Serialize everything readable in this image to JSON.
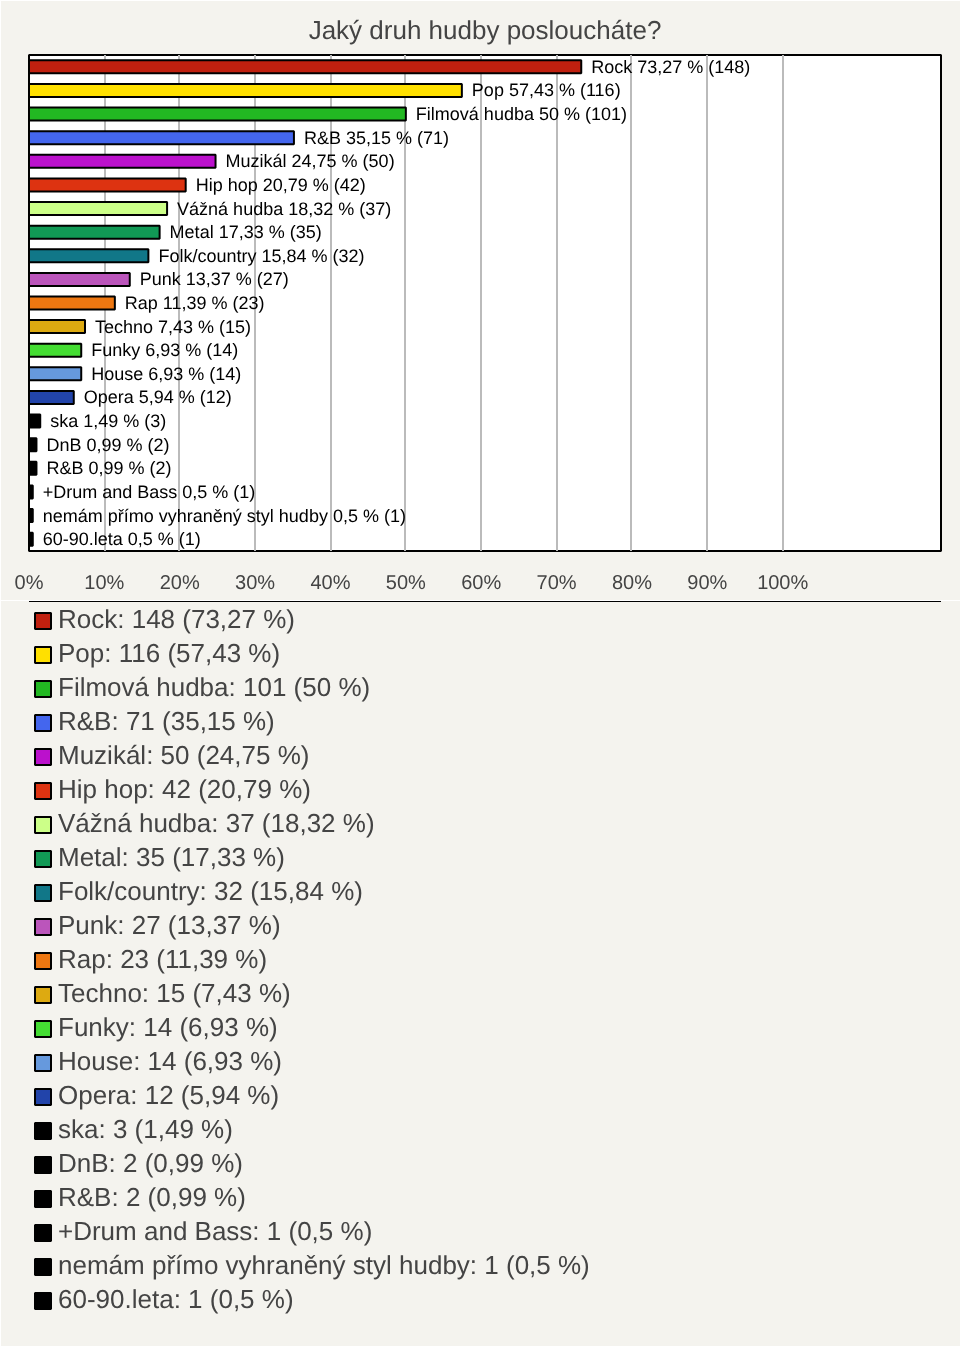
{
  "chart_data": {
    "type": "bar",
    "orientation": "horizontal",
    "title": "Jaký druh hudby posloucháte?",
    "categories": [
      null,
      null,
      null,
      null,
      null,
      null,
      null,
      null,
      null,
      null,
      null,
      null,
      null,
      null,
      null,
      null,
      null,
      null,
      null,
      null,
      null
    ],
    "xlim": [
      0,
      121
    ],
    "xticks": [
      {
        "value": 0,
        "label": "0%"
      },
      {
        "value": 10,
        "label": "10%"
      },
      {
        "value": 20,
        "label": "20%"
      },
      {
        "value": 30,
        "label": "30%"
      },
      {
        "value": 40,
        "label": "40%"
      },
      {
        "value": 50,
        "label": "50%"
      },
      {
        "value": 60,
        "label": "60%"
      },
      {
        "value": 70,
        "label": "70%"
      },
      {
        "value": 80,
        "label": "80%"
      },
      {
        "value": 90,
        "label": "90%"
      },
      {
        "value": 100,
        "label": "100%"
      }
    ],
    "grid": "x",
    "tick_labels": "x",
    "legend": "bottom",
    "series": [
      {
        "name": "Rock: 148 (73,27 %)",
        "color": "#c0200f",
        "values": [
          73.27,
          null,
          null,
          null,
          null,
          null,
          null,
          null,
          null,
          null,
          null,
          null,
          null,
          null,
          null,
          null,
          null,
          null,
          null,
          null,
          null
        ],
        "value_labels": [
          "Rock 73,27 % (148)",
          null,
          null,
          null,
          null,
          null,
          null,
          null,
          null,
          null,
          null,
          null,
          null,
          null,
          null,
          null,
          null,
          null,
          null,
          null,
          null
        ]
      },
      {
        "name": "Pop: 116 (57,43 %)",
        "color": "#ffe000",
        "values": [
          null,
          57.43,
          null,
          null,
          null,
          null,
          null,
          null,
          null,
          null,
          null,
          null,
          null,
          null,
          null,
          null,
          null,
          null,
          null,
          null,
          null
        ],
        "value_labels": [
          null,
          "Pop 57,43 % (116)",
          null,
          null,
          null,
          null,
          null,
          null,
          null,
          null,
          null,
          null,
          null,
          null,
          null,
          null,
          null,
          null,
          null,
          null,
          null
        ]
      },
      {
        "name": "Filmová hudba: 101 (50 %)",
        "color": "#22b822",
        "values": [
          null,
          null,
          50,
          null,
          null,
          null,
          null,
          null,
          null,
          null,
          null,
          null,
          null,
          null,
          null,
          null,
          null,
          null,
          null,
          null,
          null
        ],
        "value_labels": [
          null,
          null,
          "Filmová hudba 50 % (101)",
          null,
          null,
          null,
          null,
          null,
          null,
          null,
          null,
          null,
          null,
          null,
          null,
          null,
          null,
          null,
          null,
          null,
          null
        ]
      },
      {
        "name": "R&B: 71 (35,15 %)",
        "color": "#4466ee",
        "values": [
          null,
          null,
          null,
          35.15,
          null,
          null,
          null,
          null,
          null,
          null,
          null,
          null,
          null,
          null,
          null,
          null,
          null,
          null,
          null,
          null,
          null
        ],
        "value_labels": [
          null,
          null,
          null,
          "R&B 35,15 % (71)",
          null,
          null,
          null,
          null,
          null,
          null,
          null,
          null,
          null,
          null,
          null,
          null,
          null,
          null,
          null,
          null,
          null
        ]
      },
      {
        "name": "Muzikál: 50 (24,75 %)",
        "color": "#bb11cc",
        "values": [
          null,
          null,
          null,
          null,
          24.75,
          null,
          null,
          null,
          null,
          null,
          null,
          null,
          null,
          null,
          null,
          null,
          null,
          null,
          null,
          null,
          null
        ],
        "value_labels": [
          null,
          null,
          null,
          null,
          "Muzikál 24,75 % (50)",
          null,
          null,
          null,
          null,
          null,
          null,
          null,
          null,
          null,
          null,
          null,
          null,
          null,
          null,
          null,
          null
        ]
      },
      {
        "name": "Hip hop: 42 (20,79 %)",
        "color": "#dd3311",
        "values": [
          null,
          null,
          null,
          null,
          null,
          20.79,
          null,
          null,
          null,
          null,
          null,
          null,
          null,
          null,
          null,
          null,
          null,
          null,
          null,
          null,
          null
        ],
        "value_labels": [
          null,
          null,
          null,
          null,
          null,
          "Hip hop 20,79 % (42)",
          null,
          null,
          null,
          null,
          null,
          null,
          null,
          null,
          null,
          null,
          null,
          null,
          null,
          null,
          null
        ]
      },
      {
        "name": "Vážná hudba: 37 (18,32 %)",
        "color": "#ccff88",
        "values": [
          null,
          null,
          null,
          null,
          null,
          null,
          18.32,
          null,
          null,
          null,
          null,
          null,
          null,
          null,
          null,
          null,
          null,
          null,
          null,
          null,
          null
        ],
        "value_labels": [
          null,
          null,
          null,
          null,
          null,
          null,
          "Vážná hudba 18,32 % (37)",
          null,
          null,
          null,
          null,
          null,
          null,
          null,
          null,
          null,
          null,
          null,
          null,
          null,
          null
        ]
      },
      {
        "name": "Metal: 35 (17,33 %)",
        "color": "#119955",
        "values": [
          null,
          null,
          null,
          null,
          null,
          null,
          null,
          17.33,
          null,
          null,
          null,
          null,
          null,
          null,
          null,
          null,
          null,
          null,
          null,
          null,
          null
        ],
        "value_labels": [
          null,
          null,
          null,
          null,
          null,
          null,
          null,
          "Metal 17,33 % (35)",
          null,
          null,
          null,
          null,
          null,
          null,
          null,
          null,
          null,
          null,
          null,
          null,
          null
        ]
      },
      {
        "name": "Folk/country: 32 (15,84 %)",
        "color": "#117788",
        "values": [
          null,
          null,
          null,
          null,
          null,
          null,
          null,
          null,
          15.84,
          null,
          null,
          null,
          null,
          null,
          null,
          null,
          null,
          null,
          null,
          null,
          null
        ],
        "value_labels": [
          null,
          null,
          null,
          null,
          null,
          null,
          null,
          null,
          "Folk/country 15,84 % (32)",
          null,
          null,
          null,
          null,
          null,
          null,
          null,
          null,
          null,
          null,
          null,
          null
        ]
      },
      {
        "name": "Punk: 27 (13,37 %)",
        "color": "#bb55bb",
        "values": [
          null,
          null,
          null,
          null,
          null,
          null,
          null,
          null,
          null,
          13.37,
          null,
          null,
          null,
          null,
          null,
          null,
          null,
          null,
          null,
          null,
          null
        ],
        "value_labels": [
          null,
          null,
          null,
          null,
          null,
          null,
          null,
          null,
          null,
          "Punk 13,37 % (27)",
          null,
          null,
          null,
          null,
          null,
          null,
          null,
          null,
          null,
          null,
          null
        ]
      },
      {
        "name": "Rap: 23 (11,39 %)",
        "color": "#ee7711",
        "values": [
          null,
          null,
          null,
          null,
          null,
          null,
          null,
          null,
          null,
          null,
          11.39,
          null,
          null,
          null,
          null,
          null,
          null,
          null,
          null,
          null,
          null
        ],
        "value_labels": [
          null,
          null,
          null,
          null,
          null,
          null,
          null,
          null,
          null,
          null,
          "Rap 11,39 % (23)",
          null,
          null,
          null,
          null,
          null,
          null,
          null,
          null,
          null,
          null
        ]
      },
      {
        "name": "Techno: 15 (7,43 %)",
        "color": "#ddaa11",
        "values": [
          null,
          null,
          null,
          null,
          null,
          null,
          null,
          null,
          null,
          null,
          null,
          7.43,
          null,
          null,
          null,
          null,
          null,
          null,
          null,
          null,
          null
        ],
        "value_labels": [
          null,
          null,
          null,
          null,
          null,
          null,
          null,
          null,
          null,
          null,
          null,
          "Techno 7,43 % (15)",
          null,
          null,
          null,
          null,
          null,
          null,
          null,
          null,
          null
        ]
      },
      {
        "name": "Funky: 14 (6,93 %)",
        "color": "#44dd33",
        "values": [
          null,
          null,
          null,
          null,
          null,
          null,
          null,
          null,
          null,
          null,
          null,
          null,
          6.93,
          null,
          null,
          null,
          null,
          null,
          null,
          null,
          null
        ],
        "value_labels": [
          null,
          null,
          null,
          null,
          null,
          null,
          null,
          null,
          null,
          null,
          null,
          null,
          "Funky 6,93 % (14)",
          null,
          null,
          null,
          null,
          null,
          null,
          null,
          null
        ]
      },
      {
        "name": "House: 14 (6,93 %)",
        "color": "#6699dd",
        "values": [
          null,
          null,
          null,
          null,
          null,
          null,
          null,
          null,
          null,
          null,
          null,
          null,
          null,
          6.93,
          null,
          null,
          null,
          null,
          null,
          null,
          null
        ],
        "value_labels": [
          null,
          null,
          null,
          null,
          null,
          null,
          null,
          null,
          null,
          null,
          null,
          null,
          null,
          "House 6,93 % (14)",
          null,
          null,
          null,
          null,
          null,
          null,
          null
        ]
      },
      {
        "name": "Opera: 12 (5,94 %)",
        "color": "#2244aa",
        "values": [
          null,
          null,
          null,
          null,
          null,
          null,
          null,
          null,
          null,
          null,
          null,
          null,
          null,
          null,
          5.94,
          null,
          null,
          null,
          null,
          null,
          null
        ],
        "value_labels": [
          null,
          null,
          null,
          null,
          null,
          null,
          null,
          null,
          null,
          null,
          null,
          null,
          null,
          null,
          "Opera 5,94 % (12)",
          null,
          null,
          null,
          null,
          null,
          null
        ]
      },
      {
        "name": "ska: 3 (1,49 %)",
        "color": "#000000",
        "values": [
          null,
          null,
          null,
          null,
          null,
          null,
          null,
          null,
          null,
          null,
          null,
          null,
          null,
          null,
          null,
          1.49,
          null,
          null,
          null,
          null,
          null
        ],
        "value_labels": [
          null,
          null,
          null,
          null,
          null,
          null,
          null,
          null,
          null,
          null,
          null,
          null,
          null,
          null,
          null,
          "ska 1,49 % (3)",
          null,
          null,
          null,
          null,
          null
        ]
      },
      {
        "name": "DnB: 2 (0,99 %)",
        "color": "#000000",
        "values": [
          null,
          null,
          null,
          null,
          null,
          null,
          null,
          null,
          null,
          null,
          null,
          null,
          null,
          null,
          null,
          null,
          0.99,
          null,
          null,
          null,
          null
        ],
        "value_labels": [
          null,
          null,
          null,
          null,
          null,
          null,
          null,
          null,
          null,
          null,
          null,
          null,
          null,
          null,
          null,
          null,
          "DnB 0,99 % (2)",
          null,
          null,
          null,
          null
        ]
      },
      {
        "name": "R&B: 2 (0,99 %)",
        "color": "#000000",
        "values": [
          null,
          null,
          null,
          null,
          null,
          null,
          null,
          null,
          null,
          null,
          null,
          null,
          null,
          null,
          null,
          null,
          null,
          0.99,
          null,
          null,
          null
        ],
        "value_labels": [
          null,
          null,
          null,
          null,
          null,
          null,
          null,
          null,
          null,
          null,
          null,
          null,
          null,
          null,
          null,
          null,
          null,
          "R&B 0,99 % (2)",
          null,
          null,
          null
        ]
      },
      {
        "name": "+Drum and Bass: 1 (0,5 %)",
        "color": "#000000",
        "values": [
          null,
          null,
          null,
          null,
          null,
          null,
          null,
          null,
          null,
          null,
          null,
          null,
          null,
          null,
          null,
          null,
          null,
          null,
          0.5,
          null,
          null
        ],
        "value_labels": [
          null,
          null,
          null,
          null,
          null,
          null,
          null,
          null,
          null,
          null,
          null,
          null,
          null,
          null,
          null,
          null,
          null,
          null,
          "+Drum and Bass 0,5 % (1)",
          null,
          null
        ]
      },
      {
        "name": "nemám přímo vyhraněný styl hudby: 1 (0,5 %)",
        "color": "#000000",
        "values": [
          null,
          null,
          null,
          null,
          null,
          null,
          null,
          null,
          null,
          null,
          null,
          null,
          null,
          null,
          null,
          null,
          null,
          null,
          null,
          0.5,
          null
        ],
        "value_labels": [
          null,
          null,
          null,
          null,
          null,
          null,
          null,
          null,
          null,
          null,
          null,
          null,
          null,
          null,
          null,
          null,
          null,
          null,
          null,
          "nemám přímo vyhraněný styl hudby 0,5 % (1)",
          null
        ]
      },
      {
        "name": "60-90.leta: 1 (0,5 %)",
        "color": "#000000",
        "values": [
          null,
          null,
          null,
          null,
          null,
          null,
          null,
          null,
          null,
          null,
          null,
          null,
          null,
          null,
          null,
          null,
          null,
          null,
          null,
          null,
          0.5
        ],
        "value_labels": [
          null,
          null,
          null,
          null,
          null,
          null,
          null,
          null,
          null,
          null,
          null,
          null,
          null,
          null,
          null,
          null,
          null,
          null,
          null,
          null,
          "60-90.leta 0,5 % (1)"
        ]
      }
    ]
  }
}
